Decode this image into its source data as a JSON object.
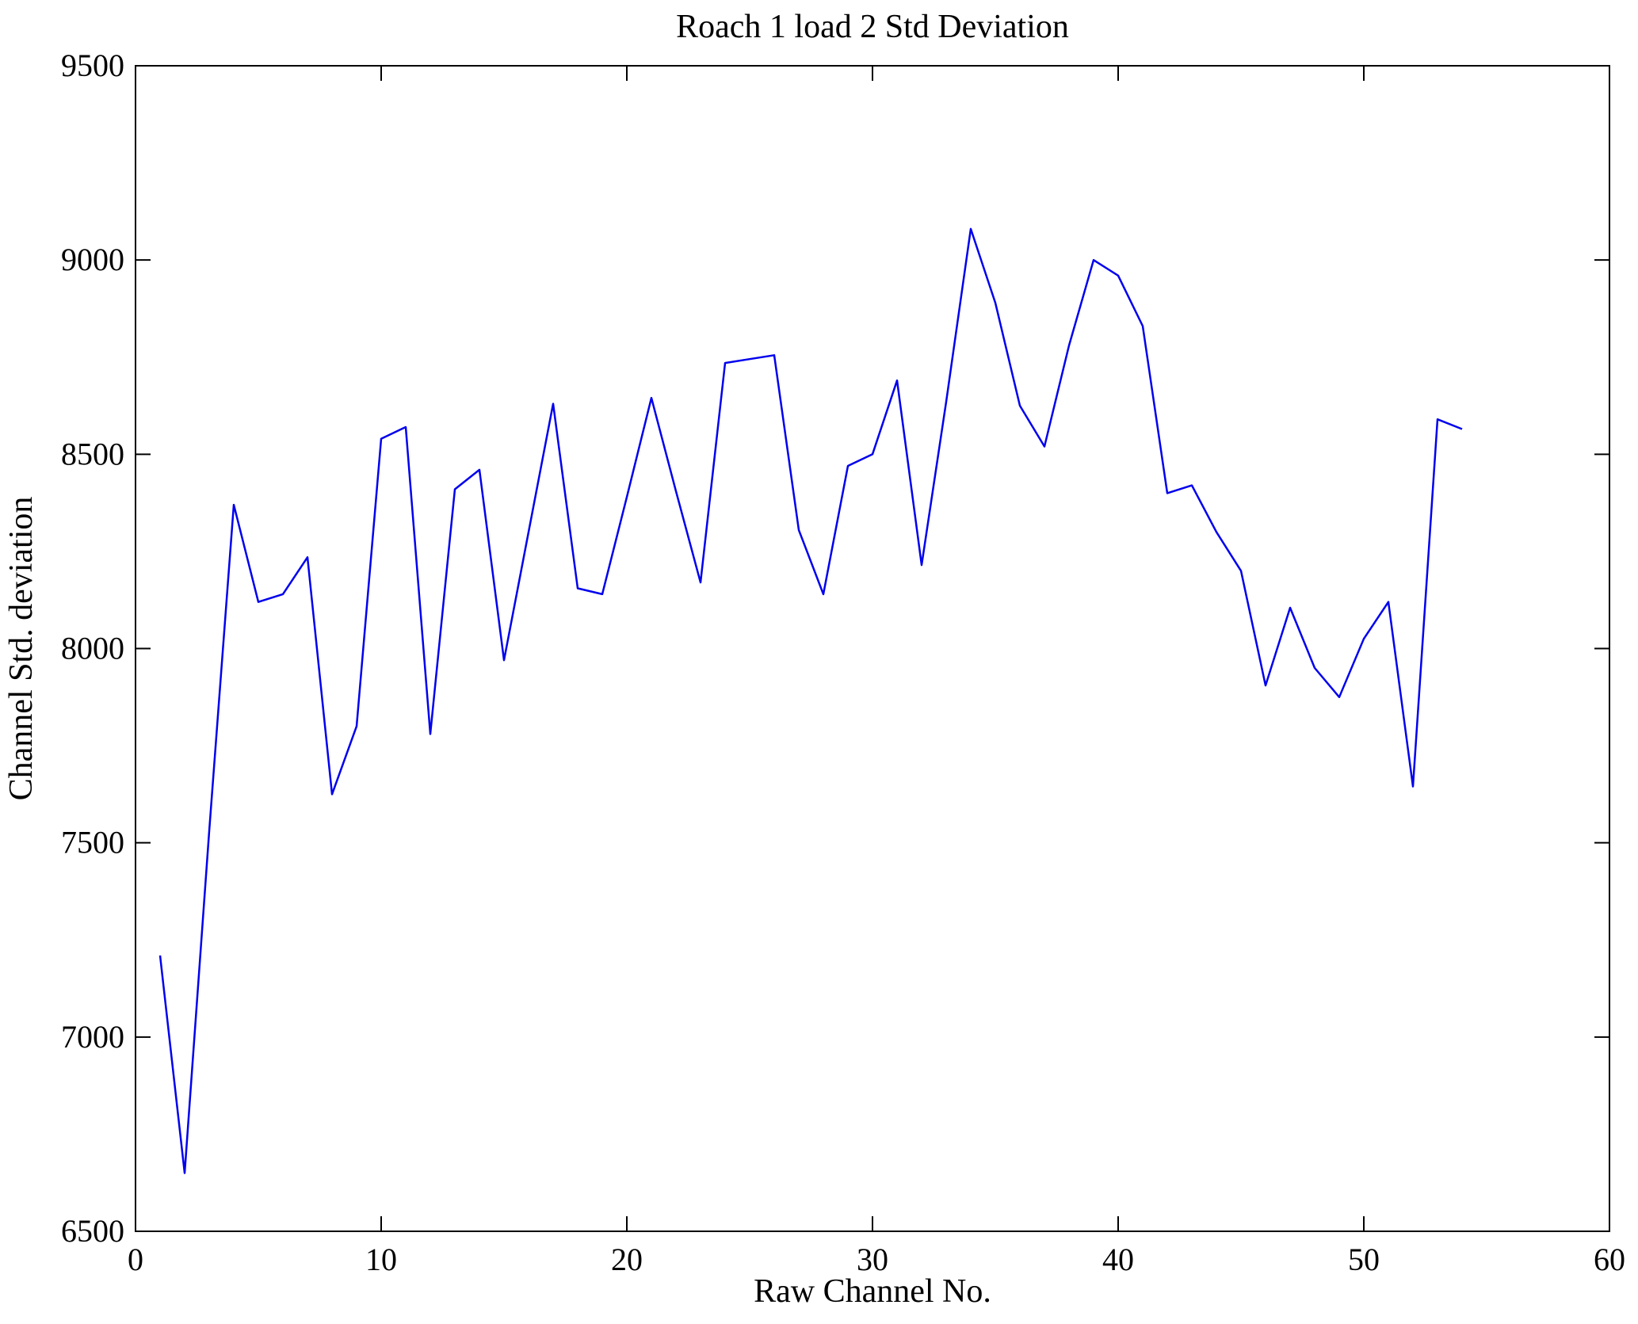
{
  "figure": {
    "background": "#ffffff"
  },
  "chart_data": {
    "type": "line",
    "title": "Roach 1 load 2 Std Deviation",
    "xlabel": "Raw Channel No.",
    "ylabel": "Channel Std. deviation",
    "xlim": [
      0,
      60
    ],
    "ylim": [
      6500,
      9500
    ],
    "xticks": [
      0,
      10,
      20,
      30,
      40,
      50,
      60
    ],
    "yticks": [
      6500,
      7000,
      7500,
      8000,
      8500,
      9000,
      9500
    ],
    "grid": false,
    "legend": null,
    "box": true,
    "line_color": "#0000ee",
    "axis_color": "#000000",
    "x": [
      1,
      2,
      3,
      4,
      5,
      6,
      7,
      8,
      9,
      10,
      11,
      12,
      13,
      14,
      15,
      16,
      17,
      18,
      19,
      20,
      21,
      22,
      23,
      24,
      25,
      26,
      27,
      28,
      29,
      30,
      31,
      32,
      33,
      34,
      35,
      36,
      37,
      38,
      39,
      40,
      41,
      42,
      43,
      44,
      45,
      46,
      47,
      48,
      49,
      50,
      51,
      52,
      53,
      54
    ],
    "series": [
      {
        "name": "Channel Std. deviation",
        "values": [
          7210,
          6650,
          7530,
          8370,
          8120,
          8140,
          8235,
          7625,
          7800,
          8540,
          8570,
          7780,
          8410,
          8460,
          7970,
          8300,
          8630,
          8155,
          8140,
          8390,
          8645,
          8405,
          8170,
          8735,
          8745,
          8755,
          8305,
          8140,
          8470,
          8500,
          8690,
          8215,
          8635,
          9080,
          8890,
          8625,
          8520,
          8780,
          9000,
          8960,
          8830,
          8400,
          8420,
          8300,
          8200,
          7905,
          8105,
          7950,
          7875,
          8025,
          8120,
          7645,
          8590,
          8565
        ]
      }
    ]
  }
}
